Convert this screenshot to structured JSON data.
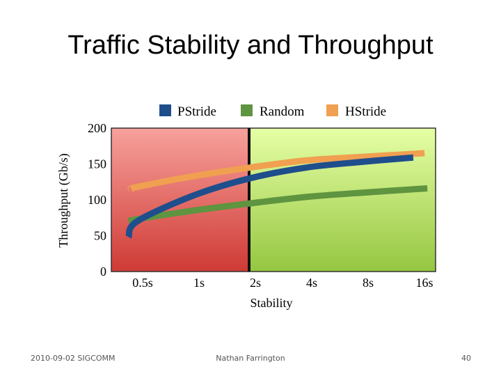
{
  "slide": {
    "title": "Traffic Stability and Throughput",
    "footer_left": "2010-09-02 SIGCOMM",
    "footer_center": "Nathan Farrington",
    "footer_right": "40"
  },
  "chart_data": {
    "type": "line",
    "title": "",
    "xlabel": "Stability",
    "ylabel": "Throughput (Gb/s)",
    "categories": [
      "0.5s",
      "1s",
      "2s",
      "4s",
      "8s",
      "16s"
    ],
    "ylim": [
      0,
      200
    ],
    "yticks": [
      0,
      50,
      100,
      150,
      200
    ],
    "legend_position": "top",
    "regions": [
      {
        "from": "start",
        "to": "2s",
        "color": "#e06060"
      },
      {
        "from": "2s",
        "to": "end",
        "color": "#b8e060"
      }
    ],
    "series": [
      {
        "name": "PStride",
        "color": "#1f4e8c",
        "x": [
          -0.15,
          0,
          1,
          2,
          3,
          4,
          4.9
        ],
        "values": [
          48,
          70,
          106,
          130,
          145,
          153,
          159
        ]
      },
      {
        "name": "Random",
        "color": "#5f9440",
        "x": [
          -0.15,
          0,
          1,
          2,
          3,
          4,
          5.15
        ],
        "values": [
          70,
          73,
          85,
          95,
          104,
          110,
          116
        ]
      },
      {
        "name": "HStride",
        "color": "#f0a050",
        "x": [
          -0.1,
          0,
          1,
          2,
          3,
          4,
          5.1
        ],
        "values": [
          115,
          118,
          133,
          145,
          155,
          160,
          165
        ]
      }
    ]
  }
}
